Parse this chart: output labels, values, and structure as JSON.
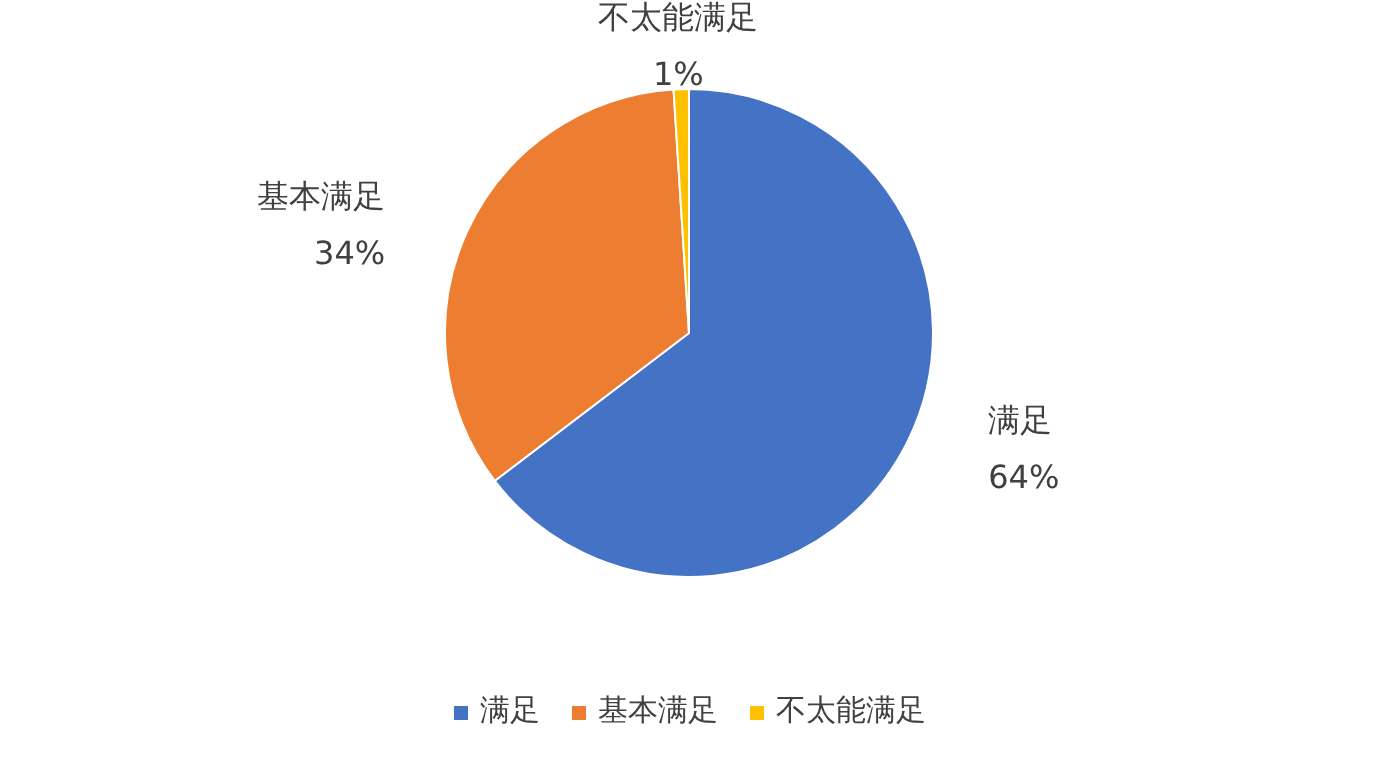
{
  "chart_data": {
    "type": "pie",
    "categories": [
      "满足",
      "基本满足",
      "不太能满足"
    ],
    "values": [
      64,
      34,
      1
    ],
    "colors": [
      "#4472c4",
      "#ed7d31",
      "#ffc000"
    ],
    "value_labels": [
      "64%",
      "34%",
      "1%"
    ],
    "legend": "bottom"
  }
}
